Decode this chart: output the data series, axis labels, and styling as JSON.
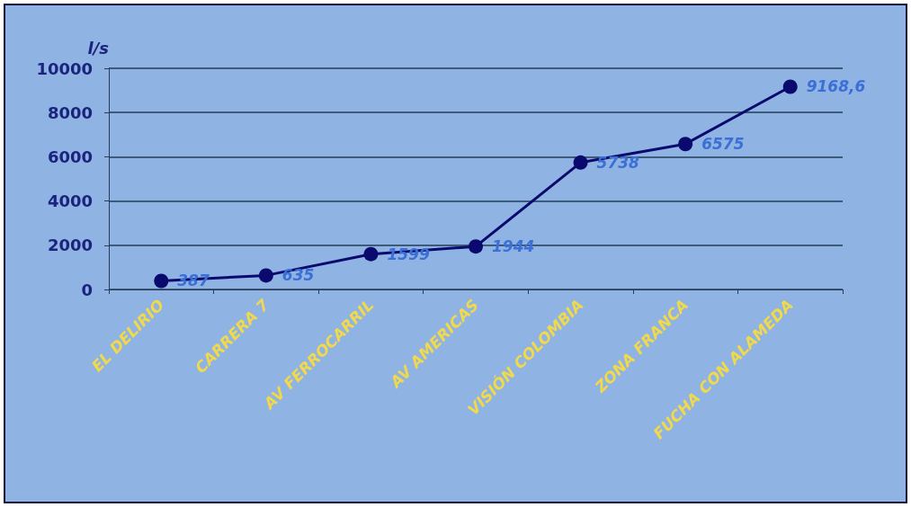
{
  "chart_data": {
    "type": "line",
    "ylabel": "l/s",
    "categories": [
      "EL DELIRIO",
      "CARRERA 7",
      "AV FERROCARRIL",
      "AV AMERICAS",
      "VISIÓN COLOMBIA",
      "ZONA FRANCA",
      "FUCHA CON ALAMEDA"
    ],
    "series": [
      {
        "color": "#0a0a6e",
        "values": [
          387,
          635,
          1599,
          1944,
          5738,
          6575,
          9168.6
        ],
        "value_labels": [
          "387",
          "635",
          "1599",
          "1944",
          "5738",
          "6575",
          "9168,6"
        ]
      }
    ],
    "ylim": [
      0,
      10000
    ],
    "yticks": [
      0,
      2000,
      4000,
      6000,
      8000,
      10000
    ],
    "grid": "y",
    "marker": "circle",
    "line_style": "solid"
  }
}
